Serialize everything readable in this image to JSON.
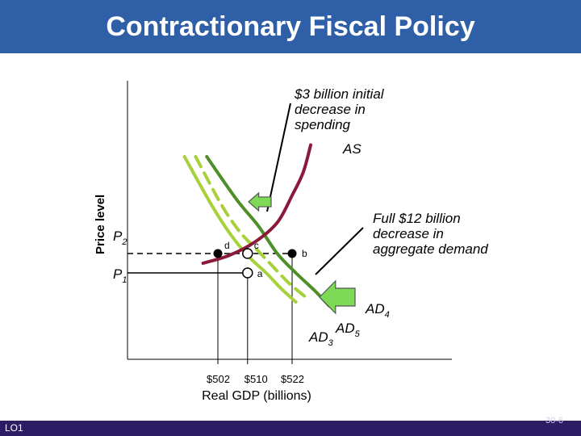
{
  "title": "Contractionary Fiscal Policy",
  "footer": {
    "left": "LO1",
    "right": "30-6"
  },
  "colors": {
    "header": "#2f5fa6",
    "footer": "#2b1c63",
    "as": "#8b1a3a",
    "ad_light": "#a6d13a",
    "ad_mid": "#6cb033",
    "ad_dark": "#4e8f2a",
    "arrow": "#7ed957"
  },
  "icons": [
    "left-arrow-icon"
  ],
  "chart_data": {
    "type": "line",
    "xlabel": "Real GDP (billions)",
    "ylabel": "Price level",
    "x_ticks": [
      "$502",
      "$510",
      "$522"
    ],
    "y_ticks": [
      "P2",
      "P1"
    ],
    "series": [
      {
        "name": "AS",
        "points": [
          [
            498,
            1.25
          ],
          [
            505,
            1.45
          ],
          [
            512,
            1.8
          ],
          [
            518,
            2.3
          ],
          [
            522,
            3.0
          ],
          [
            525,
            3.6
          ],
          [
            527,
            4.3
          ]
        ]
      },
      {
        "name": "AD3",
        "points": [
          [
            493,
            4.0
          ],
          [
            500,
            2.8
          ],
          [
            505,
            2.05
          ],
          [
            510,
            1.45
          ],
          [
            515,
            1.0
          ],
          [
            519,
            0.6
          ],
          [
            523,
            0.25
          ]
        ]
      },
      {
        "name": "AD5",
        "points": [
          [
            496,
            4.0
          ],
          [
            503,
            2.75
          ],
          [
            508,
            2.05
          ],
          [
            512,
            1.65
          ],
          [
            516,
            1.25
          ],
          [
            521,
            0.75
          ],
          [
            526,
            0.35
          ]
        ]
      },
      {
        "name": "AD4",
        "points": [
          [
            499,
            4.0
          ],
          [
            507,
            2.9
          ],
          [
            513,
            2.2
          ],
          [
            518,
            1.5
          ],
          [
            523,
            1.0
          ],
          [
            528,
            0.55
          ],
          [
            532,
            0.15
          ]
        ]
      }
    ],
    "points": [
      {
        "label": "a",
        "x": 510,
        "y": 1.0
      },
      {
        "label": "b",
        "x": 522,
        "y": 1.5
      },
      {
        "label": "c",
        "x": 510,
        "y": 1.5
      },
      {
        "label": "d",
        "x": 502,
        "y": 1.5
      }
    ],
    "series_labels": {
      "AS": "AS",
      "AD3": "AD",
      "AD3_sub": "3",
      "AD5": "AD",
      "AD5_sub": "5",
      "AD4": "AD",
      "AD4_sub": "4",
      "P2": "P",
      "P2_sub": "2",
      "P1": "P",
      "P1_sub": "1"
    },
    "annotations": {
      "spending": [
        "$3 billion initial",
        "decrease in",
        "spending"
      ],
      "demand": [
        "Full $12 billion",
        "decrease in",
        "aggregate demand"
      ]
    }
  }
}
